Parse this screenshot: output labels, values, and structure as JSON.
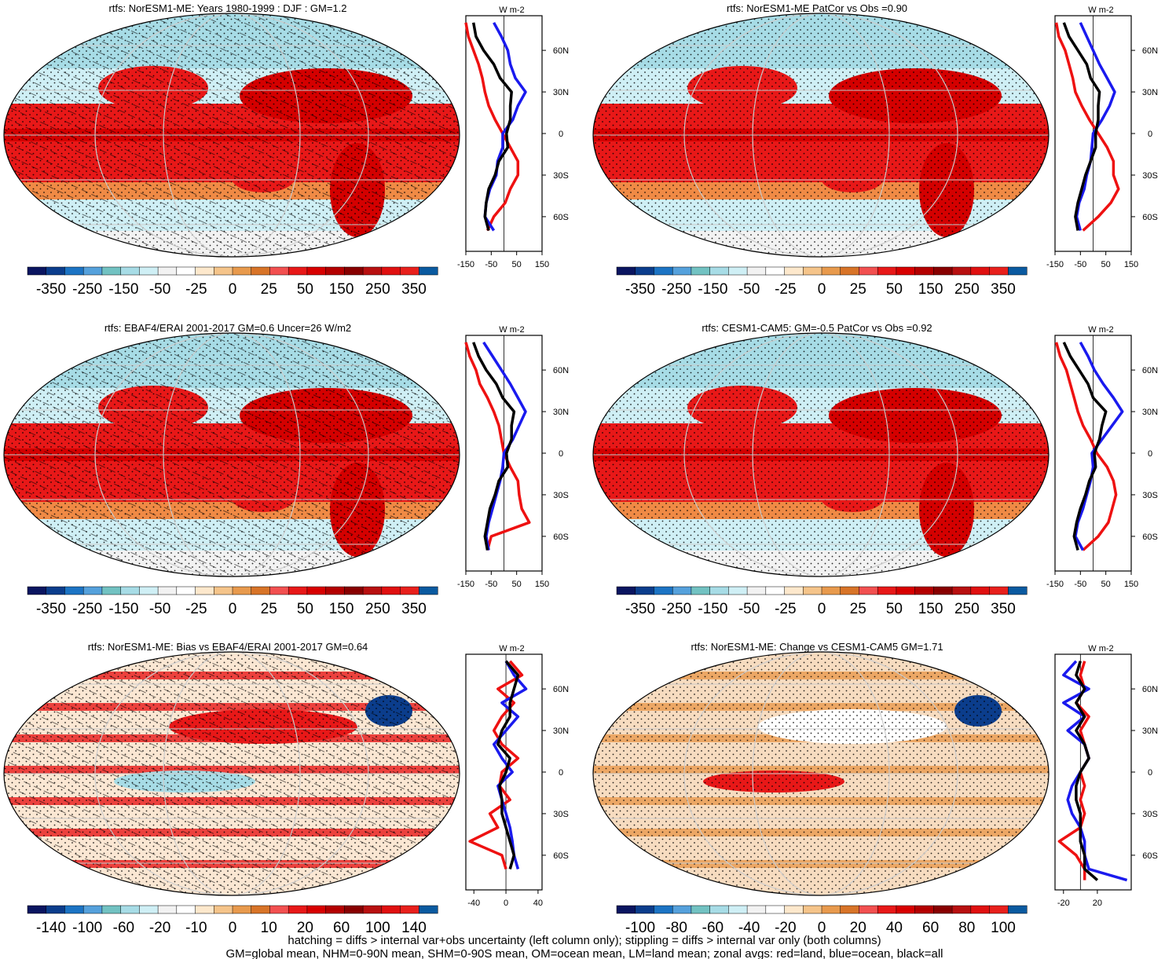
{
  "footer": {
    "line1": "hatching = diffs > internal var+obs uncertainty (left column only); stippling = diffs > internal var only (both columns)",
    "line2": "GM=global mean, NHM=0-90N mean, SHM=0-90S mean, OM=ocean mean, LM=land mean; zonal avgs: red=land, blue=ocean, black=all"
  },
  "colors": {
    "land": "#ee1111",
    "ocean": "#1a1aee",
    "all": "#000000",
    "palette": [
      "#0a1560",
      "#0b3d8c",
      "#1c74c4",
      "#55a1dc",
      "#72c2c2",
      "#a7dce6",
      "#cfeff5",
      "#f2f2f2",
      "#ffffff",
      "#fde8cc",
      "#f5c48a",
      "#e89a4d",
      "#d87428",
      "#f25050",
      "#e81818",
      "#d80000",
      "#b40000",
      "#880000",
      "#b81010",
      "#e01010",
      "#e8201c",
      "#0a5aa0"
    ]
  },
  "chart_data": [
    {
      "type": "map",
      "title": "rtfs: NorESM1-ME: Years 1980-1999 : DJF : GM=1.2",
      "colorbar_ticks": [
        "-350",
        "-250",
        "-150",
        "-50",
        "-25",
        "0",
        "25",
        "50",
        "150",
        "250",
        "350"
      ],
      "profile": {
        "unit": "W m-2",
        "x_ticks": [
          "-150",
          "-50",
          "50",
          "150"
        ],
        "y_ticks": [
          "60N",
          "30N",
          "0",
          "30S",
          "60S"
        ],
        "xlim": [
          -150,
          150
        ],
        "lat": [
          80,
          70,
          60,
          50,
          40,
          30,
          20,
          10,
          0,
          -10,
          -20,
          -30,
          -40,
          -50,
          -60,
          -70
        ],
        "land": [
          -150,
          -140,
          -120,
          -100,
          -85,
          -75,
          -60,
          -35,
          -5,
          25,
          55,
          55,
          25,
          5,
          -40,
          -65
        ],
        "ocean": [
          -40,
          -10,
          15,
          25,
          45,
          85,
          55,
          35,
          -5,
          -5,
          -25,
          -30,
          -55,
          -70,
          -75,
          -40
        ],
        "all": [
          -120,
          -110,
          -80,
          -40,
          -15,
          30,
          25,
          25,
          10,
          15,
          -20,
          -35,
          -60,
          -70,
          -75,
          -60
        ]
      }
    },
    {
      "type": "map",
      "title": "rtfs: NorESM1-ME PatCor vs Obs =0.90",
      "colorbar_ticks": [
        "-350",
        "-250",
        "-150",
        "-50",
        "-25",
        "0",
        "25",
        "50",
        "150",
        "250",
        "350"
      ],
      "profile": {
        "unit": "W m-2",
        "x_ticks": [
          "-150",
          "-50",
          "50",
          "150"
        ],
        "y_ticks": [
          "60N",
          "30N",
          "0",
          "30S",
          "60S"
        ],
        "xlim": [
          -150,
          150
        ],
        "lat": [
          80,
          70,
          60,
          50,
          40,
          30,
          20,
          10,
          0,
          -10,
          -20,
          -30,
          -40,
          -50,
          -60,
          -70
        ],
        "land": [
          -145,
          -135,
          -110,
          -95,
          -80,
          -70,
          -45,
          -15,
          20,
          55,
          80,
          80,
          100,
          70,
          20,
          -40
        ],
        "ocean": [
          -50,
          -25,
          0,
          25,
          55,
          85,
          65,
          35,
          0,
          -5,
          -10,
          -25,
          -35,
          -55,
          -65,
          -50
        ],
        "all": [
          -115,
          -95,
          -60,
          -25,
          -10,
          25,
          20,
          20,
          10,
          10,
          -10,
          -30,
          -45,
          -60,
          -70,
          -60
        ]
      }
    },
    {
      "type": "map",
      "title": "rtfs: EBAF4/ERAI 2001-2017 GM=0.6 Uncer=26 W/m2",
      "colorbar_ticks": [
        "-350",
        "-250",
        "-150",
        "-50",
        "-25",
        "0",
        "25",
        "50",
        "150",
        "250",
        "350"
      ],
      "profile": {
        "unit": "W m-2",
        "x_ticks": [
          "-150",
          "-50",
          "50",
          "150"
        ],
        "y_ticks": [
          "60N",
          "30N",
          "0",
          "30S",
          "60S"
        ],
        "xlim": [
          -150,
          150
        ],
        "lat": [
          80,
          70,
          60,
          50,
          40,
          30,
          20,
          10,
          0,
          -10,
          -20,
          -30,
          -40,
          -50,
          -60,
          -70
        ],
        "land": [
          -150,
          -135,
          -110,
          -95,
          -65,
          -40,
          -20,
          -10,
          0,
          25,
          55,
          60,
          70,
          100,
          -50,
          -65
        ],
        "ocean": [
          -80,
          -45,
          -10,
          25,
          55,
          85,
          60,
          35,
          0,
          -5,
          -15,
          -30,
          -45,
          -60,
          -70,
          -60
        ],
        "all": [
          -120,
          -100,
          -70,
          -30,
          -5,
          40,
          30,
          30,
          10,
          15,
          -20,
          -35,
          -55,
          -65,
          -75,
          -65
        ]
      }
    },
    {
      "type": "map",
      "title": "rtfs: CESM1-CAM5: GM=-0.5 PatCor vs Obs =0.92",
      "colorbar_ticks": [
        "-350",
        "-250",
        "-150",
        "-50",
        "-25",
        "0",
        "25",
        "50",
        "150",
        "250",
        "350"
      ],
      "profile": {
        "unit": "W m-2",
        "x_ticks": [
          "-150",
          "-50",
          "50",
          "150"
        ],
        "y_ticks": [
          "60N",
          "30N",
          "0",
          "30S",
          "60S"
        ],
        "xlim": [
          -150,
          150
        ],
        "lat": [
          80,
          70,
          60,
          50,
          40,
          30,
          20,
          10,
          0,
          -10,
          -20,
          -30,
          -40,
          -50,
          -60,
          -70
        ],
        "land": [
          -145,
          -130,
          -105,
          -90,
          -75,
          -60,
          -40,
          -10,
          15,
          55,
          80,
          90,
          75,
          60,
          20,
          -40
        ],
        "ocean": [
          -50,
          -20,
          5,
          40,
          80,
          115,
          75,
          35,
          -5,
          0,
          -10,
          -25,
          -40,
          -60,
          -70,
          -40
        ],
        "all": [
          -115,
          -90,
          -55,
          -20,
          0,
          50,
          35,
          25,
          5,
          10,
          -15,
          -30,
          -50,
          -65,
          -75,
          -60
        ]
      }
    },
    {
      "type": "map",
      "title": "rtfs: NorESM1-ME: Bias vs EBAF4/ERAI 2001-2017 GM=0.64",
      "colorbar_ticks": [
        "-140",
        "-100",
        "-60",
        "-20",
        "-10",
        "0",
        "10",
        "20",
        "60",
        "100",
        "140"
      ],
      "profile": {
        "unit": "W m-2",
        "x_ticks": [
          "-40",
          "0",
          "40"
        ],
        "y_ticks": [
          "60N",
          "30N",
          "0",
          "30S",
          "60S"
        ],
        "xlim": [
          -50,
          45
        ],
        "lat": [
          80,
          70,
          60,
          50,
          40,
          30,
          20,
          10,
          0,
          -10,
          -20,
          -30,
          -40,
          -50,
          -60,
          -70
        ],
        "land": [
          5,
          20,
          -10,
          10,
          -5,
          -15,
          -5,
          15,
          -5,
          -8,
          5,
          -20,
          -10,
          -45,
          -5,
          0
        ],
        "ocean": [
          0,
          10,
          25,
          -5,
          15,
          0,
          -15,
          -5,
          8,
          -10,
          -5,
          0,
          5,
          8,
          10,
          15
        ],
        "all": [
          0,
          15,
          10,
          5,
          5,
          -5,
          -10,
          5,
          0,
          -8,
          -5,
          -5,
          0,
          5,
          10,
          5
        ]
      }
    },
    {
      "type": "map",
      "title": "rtfs: NorESM1-ME: Change vs CESM1-CAM5 GM=1.71",
      "colorbar_ticks": [
        "-100",
        "-80",
        "-60",
        "-40",
        "-20",
        "0",
        "20",
        "40",
        "60",
        "80",
        "100"
      ],
      "profile": {
        "unit": "W m-2",
        "x_ticks": [
          "-20",
          "20"
        ],
        "y_ticks": [
          "60N",
          "30N",
          "0",
          "30S",
          "60S"
        ],
        "xlim": [
          -30,
          60
        ],
        "lat": [
          80,
          70,
          60,
          50,
          40,
          30,
          20,
          10,
          0,
          -10,
          -20,
          -30,
          -40,
          -50,
          -60,
          -70,
          -78
        ],
        "land": [
          5,
          0,
          5,
          -5,
          10,
          0,
          5,
          10,
          0,
          5,
          0,
          5,
          0,
          -25,
          -5,
          5,
          5
        ],
        "ocean": [
          -5,
          -20,
          10,
          -20,
          5,
          -15,
          5,
          10,
          0,
          -10,
          -15,
          -10,
          0,
          5,
          5,
          10,
          55
        ],
        "all": [
          0,
          -5,
          5,
          -5,
          5,
          -5,
          5,
          10,
          0,
          -5,
          -5,
          0,
          0,
          0,
          5,
          5,
          20
        ]
      }
    }
  ]
}
